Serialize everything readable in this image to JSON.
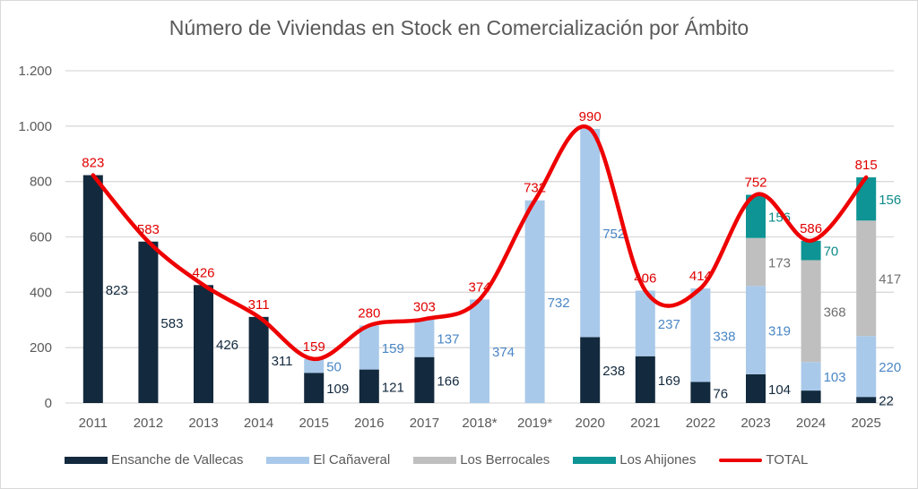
{
  "chart_data": {
    "type": "bar",
    "stacked": true,
    "title": "Número de Viviendas en Stock en Comercialización por Ámbito",
    "xlabel": "",
    "ylabel": "",
    "ylim": [
      0,
      1200
    ],
    "yticks": [
      0,
      200,
      400,
      600,
      800,
      1000,
      1200
    ],
    "ytick_labels": [
      "0",
      "200",
      "400",
      "600",
      "800",
      "1.000",
      "1.200"
    ],
    "grid": true,
    "legend_position": "bottom",
    "categories": [
      "2011",
      "2012",
      "2013",
      "2014",
      "2015",
      "2016",
      "2017",
      "2018*",
      "2019*",
      "2020",
      "2021",
      "2022",
      "2023",
      "2024",
      "2025"
    ],
    "series": [
      {
        "name": "Ensanche de Vallecas",
        "color": "#13293d",
        "label_color": "#13293d",
        "values": [
          823,
          583,
          426,
          311,
          109,
          121,
          166,
          0,
          0,
          238,
          169,
          76,
          104,
          45,
          22
        ],
        "labels": [
          "823",
          "583",
          "426",
          "311",
          "109",
          "121",
          "166",
          "",
          "",
          "238",
          "169",
          "76",
          "104",
          "",
          "22"
        ]
      },
      {
        "name": "El Cañaveral",
        "color": "#a9c9ea",
        "label_color": "#4a86c5",
        "values": [
          0,
          0,
          0,
          0,
          50,
          159,
          137,
          374,
          732,
          752,
          237,
          338,
          319,
          103,
          220
        ],
        "labels": [
          "",
          "",
          "",
          "",
          "50",
          "159",
          "137",
          "374",
          "732",
          "752",
          "237",
          "338",
          "319",
          "103",
          "220"
        ]
      },
      {
        "name": "Los Berrocales",
        "color": "#bfbfbf",
        "label_color": "#707070",
        "values": [
          0,
          0,
          0,
          0,
          0,
          0,
          0,
          0,
          0,
          0,
          0,
          0,
          173,
          368,
          417
        ],
        "labels": [
          "",
          "",
          "",
          "",
          "",
          "",
          "",
          "",
          "",
          "",
          "",
          "",
          "173",
          "368",
          "417"
        ]
      },
      {
        "name": "Los Ahijones",
        "color": "#0e9494",
        "label_color": "#0e8a8a",
        "values": [
          0,
          0,
          0,
          0,
          0,
          0,
          0,
          0,
          0,
          0,
          0,
          0,
          156,
          70,
          156
        ],
        "labels": [
          "",
          "",
          "",
          "",
          "",
          "",
          "",
          "",
          "",
          "",
          "",
          "",
          "156",
          "70",
          "156"
        ]
      }
    ],
    "line": {
      "name": "TOTAL",
      "color": "#ee0000",
      "values": [
        823,
        583,
        426,
        311,
        159,
        280,
        303,
        374,
        732,
        990,
        406,
        414,
        752,
        586,
        815
      ],
      "labels": [
        "823",
        "583",
        "426",
        "311",
        "159",
        "280",
        "303",
        "374",
        "732",
        "990",
        "406",
        "414",
        "752",
        "586",
        "815"
      ]
    }
  }
}
